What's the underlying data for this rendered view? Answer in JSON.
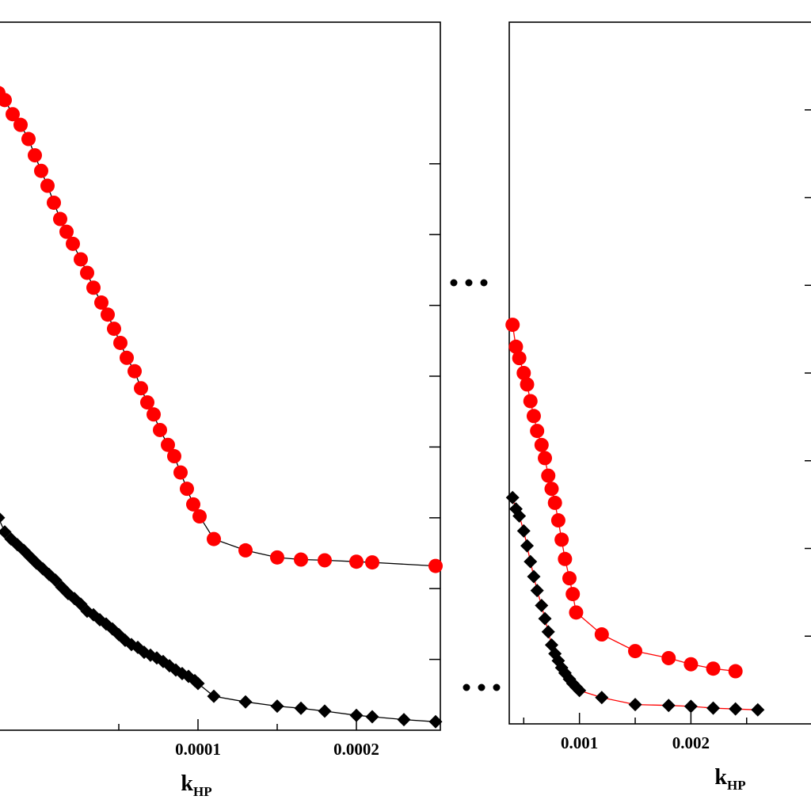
{
  "chart_data": [
    {
      "type": "line",
      "xlabel": "k",
      "xlabel_subscript": "HP",
      "ylabel": "",
      "xlim": [
        -2.7e-05,
        0.000253
      ],
      "ylim": [
        0,
        1
      ],
      "x_ticks": [
        0.0001,
        0.0002
      ],
      "x_tick_labels": [
        "0.0001",
        "0.0002"
      ],
      "x_minor_ticks": [
        5e-05,
        0.00015
      ],
      "y_ticks": [
        0.1,
        0.2,
        0.3,
        0.4,
        0.5,
        0.6,
        0.7,
        0.8
      ],
      "grid": false,
      "series": [
        {
          "marker": "circle",
          "color": "#ff0000",
          "line_color": "#000000",
          "x": [
            -2.6e-05,
            -2.2e-05,
            -1.7e-05,
            -1.2e-05,
            -7e-06,
            -3e-06,
            1e-06,
            5e-06,
            9e-06,
            1.3e-05,
            1.7e-05,
            2.1e-05,
            2.6e-05,
            3e-05,
            3.4e-05,
            3.9e-05,
            4.3e-05,
            4.7e-05,
            5.1e-05,
            5.5e-05,
            6e-05,
            6.4e-05,
            6.8e-05,
            7.2e-05,
            7.6e-05,
            8.1e-05,
            8.5e-05,
            8.9e-05,
            9.3e-05,
            9.7e-05,
            0.000101,
            0.00011,
            0.00013,
            0.00015,
            0.000165,
            0.00018,
            0.0002,
            0.00021,
            0.00025
          ],
          "y": [
            0.9,
            0.89,
            0.87,
            0.855,
            0.835,
            0.812,
            0.79,
            0.769,
            0.745,
            0.722,
            0.704,
            0.687,
            0.665,
            0.646,
            0.625,
            0.604,
            0.587,
            0.567,
            0.547,
            0.526,
            0.507,
            0.483,
            0.463,
            0.446,
            0.424,
            0.403,
            0.387,
            0.364,
            0.341,
            0.319,
            0.302,
            0.27,
            0.254,
            0.244,
            0.241,
            0.24,
            0.238,
            0.237,
            0.232
          ]
        },
        {
          "marker": "diamond",
          "color": "#000000",
          "line_color": "#000000",
          "x": [
            -2.6e-05,
            -2.2e-05,
            -1.8e-05,
            -1.4e-05,
            -1e-05,
            -6e-06,
            -2e-06,
            2e-06,
            6e-06,
            1e-05,
            1.4e-05,
            1.8e-05,
            2.2e-05,
            2.6e-05,
            3e-05,
            3.4e-05,
            3.8e-05,
            4.2e-05,
            4.6e-05,
            5e-05,
            5.4e-05,
            5.8e-05,
            6.2e-05,
            6.6e-05,
            7e-05,
            7.4e-05,
            7.8e-05,
            8.2e-05,
            8.6e-05,
            9e-05,
            9.4e-05,
            9.8e-05,
            0.0001,
            0.00011,
            0.00013,
            0.00015,
            0.000165,
            0.00018,
            0.0002,
            0.00021,
            0.00023,
            0.00025
          ],
          "y": [
            0.3,
            0.28,
            0.27,
            0.262,
            0.254,
            0.245,
            0.236,
            0.228,
            0.22,
            0.212,
            0.202,
            0.193,
            0.186,
            0.178,
            0.168,
            0.163,
            0.156,
            0.15,
            0.143,
            0.135,
            0.127,
            0.121,
            0.117,
            0.11,
            0.106,
            0.102,
            0.097,
            0.091,
            0.085,
            0.08,
            0.076,
            0.07,
            0.066,
            0.048,
            0.04,
            0.034,
            0.031,
            0.027,
            0.021,
            0.019,
            0.015,
            0.012
          ]
        }
      ]
    },
    {
      "type": "line",
      "xlabel": "k",
      "xlabel_subscript": "HP",
      "ylabel": "",
      "xlim": [
        0.00037,
        0.00312
      ],
      "ylim": [
        0,
        0.8
      ],
      "x_ticks": [
        0.001,
        0.002
      ],
      "x_tick_labels": [
        "0.001",
        "0.002"
      ],
      "x_minor_ticks": [
        0.0005,
        0.0015,
        0.0025
      ],
      "y_ticks": [
        0.1,
        0.2,
        0.3,
        0.4,
        0.5,
        0.6,
        0.7
      ],
      "grid": false,
      "series": [
        {
          "marker": "circle",
          "color": "#ff0000",
          "line_color": "#ff0000",
          "x": [
            0.0004,
            0.00043,
            0.00046,
            0.0005,
            0.00053,
            0.00056,
            0.00059,
            0.00062,
            0.00066,
            0.00069,
            0.00072,
            0.00075,
            0.00078,
            0.00081,
            0.00084,
            0.00087,
            0.00091,
            0.00094,
            0.00097,
            0.0012,
            0.0015,
            0.0018,
            0.002,
            0.0022,
            0.0024
          ],
          "y": [
            0.455,
            0.43,
            0.417,
            0.4,
            0.387,
            0.368,
            0.351,
            0.334,
            0.318,
            0.303,
            0.283,
            0.268,
            0.252,
            0.232,
            0.21,
            0.188,
            0.166,
            0.148,
            0.127,
            0.102,
            0.083,
            0.075,
            0.068,
            0.063,
            0.06
          ]
        },
        {
          "marker": "diamond",
          "color": "#000000",
          "line_color": "#ff0000",
          "x": [
            0.0004,
            0.00043,
            0.00046,
            0.0005,
            0.00053,
            0.00056,
            0.00059,
            0.00062,
            0.00066,
            0.00069,
            0.00072,
            0.00075,
            0.00078,
            0.00081,
            0.00084,
            0.00087,
            0.00091,
            0.00094,
            0.00097,
            0.001,
            0.0012,
            0.0015,
            0.0018,
            0.002,
            0.0022,
            0.0024,
            0.0026
          ],
          "y": [
            0.258,
            0.245,
            0.237,
            0.22,
            0.203,
            0.185,
            0.168,
            0.152,
            0.135,
            0.12,
            0.105,
            0.09,
            0.08,
            0.072,
            0.064,
            0.058,
            0.051,
            0.046,
            0.042,
            0.038,
            0.03,
            0.022,
            0.021,
            0.02,
            0.018,
            0.017,
            0.016
          ]
        }
      ]
    }
  ]
}
